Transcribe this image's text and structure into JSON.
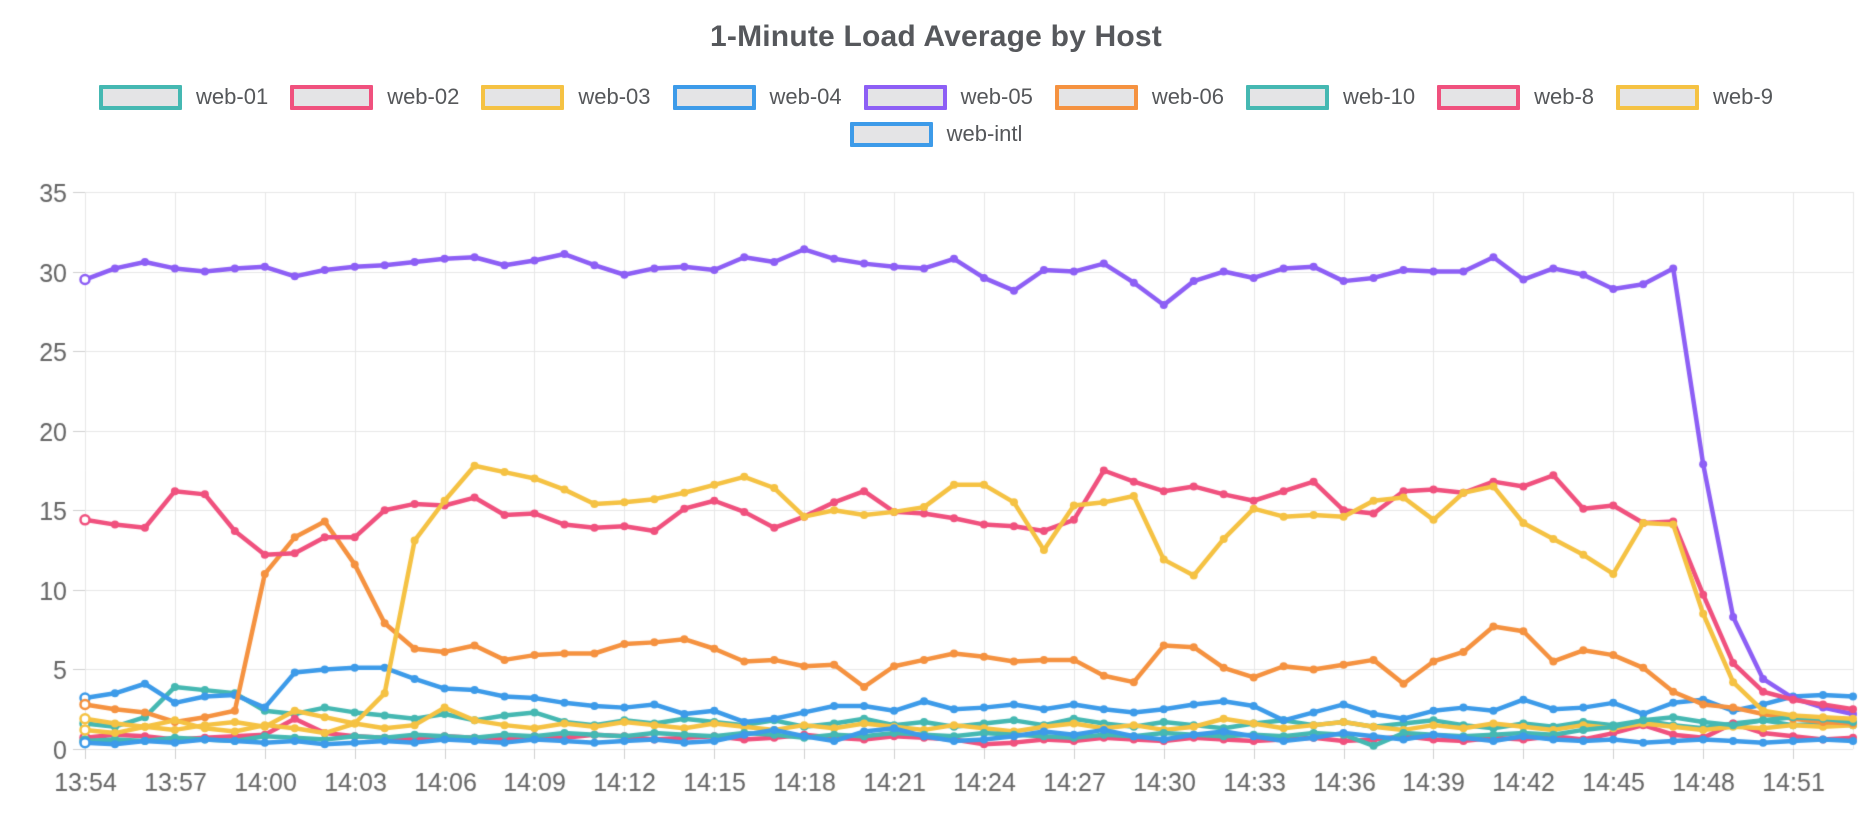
{
  "chart_data": {
    "type": "line",
    "title": "1-Minute Load Average by Host",
    "xlabel": "",
    "ylabel": "",
    "ylim": [
      0,
      35
    ],
    "y_tick_step": 5,
    "x_tick_step": 3,
    "grid": true,
    "legend_position": "top",
    "grid_color": "#e7e7e7",
    "tick_color": "#cfcfcf",
    "axis_text_color": "#666666",
    "title_color": "#56585c",
    "background_color": "#ffffff",
    "x": [
      "13:54",
      "13:55",
      "13:56",
      "13:57",
      "13:58",
      "13:59",
      "14:00",
      "14:01",
      "14:02",
      "14:03",
      "14:04",
      "14:05",
      "14:06",
      "14:07",
      "14:08",
      "14:09",
      "14:10",
      "14:11",
      "14:12",
      "14:13",
      "14:14",
      "14:15",
      "14:16",
      "14:17",
      "14:18",
      "14:19",
      "14:20",
      "14:21",
      "14:22",
      "14:23",
      "14:24",
      "14:25",
      "14:26",
      "14:27",
      "14:28",
      "14:29",
      "14:30",
      "14:31",
      "14:32",
      "14:33",
      "14:34",
      "14:35",
      "14:36",
      "14:37",
      "14:38",
      "14:39",
      "14:40",
      "14:41",
      "14:42",
      "14:43",
      "14:44",
      "14:45",
      "14:46",
      "14:47",
      "14:48",
      "14:49",
      "14:50",
      "14:51",
      "14:52",
      "14:53"
    ],
    "series": [
      {
        "name": "web-01",
        "color": "#45b8b2",
        "values": [
          1.6,
          1.4,
          2.0,
          3.9,
          3.7,
          3.5,
          2.4,
          2.2,
          2.6,
          2.3,
          2.1,
          1.9,
          2.2,
          1.8,
          2.1,
          2.3,
          1.7,
          1.5,
          1.8,
          1.6,
          1.9,
          1.7,
          1.5,
          1.8,
          1.4,
          1.6,
          1.9,
          1.5,
          1.7,
          1.4,
          1.6,
          1.8,
          1.5,
          1.9,
          1.6,
          1.4,
          1.7,
          1.5,
          1.3,
          1.6,
          1.8,
          1.5,
          1.7,
          1.4,
          1.6,
          1.8,
          1.5,
          1.3,
          1.6,
          1.4,
          1.7,
          1.5,
          1.8,
          1.5,
          1.3,
          1.6,
          1.8,
          1.5,
          1.6,
          1.5
        ]
      },
      {
        "name": "web-02",
        "color": "#f0517e",
        "values": [
          0.7,
          0.9,
          0.8,
          0.6,
          0.7,
          0.8,
          0.9,
          1.9,
          1.0,
          0.8,
          0.7,
          0.6,
          0.8,
          0.7,
          0.6,
          0.8,
          0.7,
          0.9,
          0.8,
          0.6,
          0.7,
          0.8,
          0.6,
          0.7,
          0.9,
          0.7,
          0.6,
          0.8,
          0.7,
          0.6,
          0.3,
          0.4,
          0.6,
          0.5,
          0.7,
          0.6,
          0.5,
          0.7,
          0.6,
          0.5,
          0.6,
          0.7,
          0.5,
          0.6,
          0.8,
          0.6,
          0.5,
          0.7,
          0.6,
          0.8,
          0.6,
          1.0,
          1.5,
          0.9,
          0.7,
          1.6,
          1.0,
          0.8,
          0.6,
          0.7
        ]
      },
      {
        "name": "web-03",
        "color": "#f5c243",
        "values": [
          1.9,
          1.6,
          1.4,
          1.2,
          1.5,
          1.7,
          1.4,
          2.4,
          2.0,
          1.6,
          1.3,
          1.5,
          2.6,
          1.8,
          1.5,
          1.3,
          1.6,
          1.4,
          1.7,
          1.5,
          1.3,
          1.6,
          1.4,
          1.2,
          1.5,
          1.3,
          1.6,
          1.4,
          1.2,
          1.5,
          1.3,
          1.1,
          1.4,
          1.6,
          1.3,
          1.5,
          1.2,
          1.4,
          1.9,
          1.6,
          1.3,
          1.5,
          1.7,
          1.4,
          1.2,
          1.5,
          1.3,
          1.6,
          1.4,
          1.2,
          1.5,
          1.3,
          1.6,
          1.4,
          1.2,
          1.4,
          1.3,
          1.5,
          1.4,
          1.5
        ]
      },
      {
        "name": "web-04",
        "color": "#3d9be9",
        "values": [
          3.2,
          3.5,
          4.1,
          2.9,
          3.3,
          3.4,
          2.6,
          4.8,
          5.0,
          5.1,
          5.1,
          4.4,
          3.8,
          3.7,
          3.3,
          3.2,
          2.9,
          2.7,
          2.6,
          2.8,
          2.2,
          2.4,
          1.7,
          1.9,
          2.3,
          2.7,
          2.7,
          2.4,
          3.0,
          2.5,
          2.6,
          2.8,
          2.5,
          2.8,
          2.5,
          2.3,
          2.5,
          2.8,
          3.0,
          2.7,
          1.8,
          2.3,
          2.8,
          2.2,
          1.9,
          2.4,
          2.6,
          2.4,
          3.1,
          2.5,
          2.6,
          2.9,
          2.2,
          2.9,
          3.1,
          2.4,
          2.8,
          3.3,
          3.4,
          3.3
        ]
      },
      {
        "name": "web-05",
        "color": "#8d5ff5",
        "values": [
          29.5,
          30.2,
          30.6,
          30.2,
          30.0,
          30.2,
          30.3,
          29.7,
          30.1,
          30.3,
          30.4,
          30.6,
          30.8,
          30.9,
          30.4,
          30.7,
          31.1,
          30.4,
          29.8,
          30.2,
          30.3,
          30.1,
          30.9,
          30.6,
          31.4,
          30.8,
          30.5,
          30.3,
          30.2,
          30.8,
          29.6,
          28.8,
          30.1,
          30.0,
          30.5,
          29.3,
          27.9,
          29.4,
          30.0,
          29.6,
          30.2,
          30.3,
          29.4,
          29.6,
          30.1,
          30.0,
          30.0,
          30.9,
          29.5,
          30.2,
          29.8,
          28.9,
          29.2,
          30.2,
          17.9,
          8.3,
          4.4,
          3.2,
          2.6,
          2.2
        ]
      },
      {
        "name": "web-06",
        "color": "#f59240",
        "values": [
          2.8,
          2.5,
          2.3,
          1.7,
          2.0,
          2.4,
          11.0,
          13.3,
          14.3,
          11.6,
          7.9,
          6.3,
          6.1,
          6.5,
          5.6,
          5.9,
          6.0,
          6.0,
          6.6,
          6.7,
          6.9,
          6.3,
          5.5,
          5.6,
          5.2,
          5.3,
          3.9,
          5.2,
          5.6,
          6.0,
          5.8,
          5.5,
          5.6,
          5.6,
          4.6,
          4.2,
          6.5,
          6.4,
          5.1,
          4.5,
          5.2,
          5.0,
          5.3,
          5.6,
          4.1,
          5.5,
          6.1,
          7.7,
          7.4,
          5.5,
          6.2,
          5.9,
          5.1,
          3.6,
          2.8,
          2.6,
          2.2,
          1.9,
          1.7,
          1.6
        ]
      },
      {
        "name": "web-10",
        "color": "#45b8b2",
        "values": [
          0.5,
          0.6,
          0.5,
          0.7,
          0.6,
          0.5,
          0.8,
          0.7,
          0.6,
          0.8,
          0.7,
          0.9,
          0.8,
          0.7,
          0.9,
          0.8,
          1.0,
          0.9,
          0.8,
          1.0,
          0.9,
          0.8,
          1.0,
          0.9,
          0.7,
          0.9,
          0.8,
          1.0,
          0.9,
          0.8,
          1.0,
          0.9,
          0.8,
          0.7,
          0.9,
          0.8,
          1.0,
          0.9,
          0.8,
          0.9,
          0.8,
          1.0,
          0.9,
          0.2,
          1.0,
          0.9,
          0.8,
          0.9,
          1.0,
          0.9,
          1.2,
          1.4,
          1.8,
          2.0,
          1.7,
          1.5,
          1.8,
          2.0,
          1.9,
          1.7
        ]
      },
      {
        "name": "web-8",
        "color": "#f0517e",
        "values": [
          14.4,
          14.1,
          13.9,
          16.2,
          16.0,
          13.7,
          12.2,
          12.3,
          13.3,
          13.3,
          15.0,
          15.4,
          15.3,
          15.8,
          14.7,
          14.8,
          14.1,
          13.9,
          14.0,
          13.7,
          15.1,
          15.6,
          14.9,
          13.9,
          14.6,
          15.5,
          16.2,
          14.9,
          14.8,
          14.5,
          14.1,
          14.0,
          13.7,
          14.4,
          17.5,
          16.8,
          16.2,
          16.5,
          16.0,
          15.6,
          16.2,
          16.8,
          15.0,
          14.8,
          16.2,
          16.3,
          16.1,
          16.8,
          16.5,
          17.2,
          15.1,
          15.3,
          14.2,
          14.3,
          9.7,
          5.4,
          3.6,
          3.1,
          2.8,
          2.5
        ]
      },
      {
        "name": "web-9",
        "color": "#f5c243",
        "values": [
          1.2,
          1.0,
          1.4,
          1.8,
          1.3,
          1.1,
          1.5,
          1.3,
          1.0,
          1.6,
          3.5,
          13.1,
          15.6,
          17.8,
          17.4,
          17.0,
          16.3,
          15.4,
          15.5,
          15.7,
          16.1,
          16.6,
          17.1,
          16.4,
          14.6,
          15.0,
          14.7,
          14.9,
          15.2,
          16.6,
          16.6,
          15.5,
          12.5,
          15.3,
          15.5,
          15.9,
          11.9,
          10.9,
          13.2,
          15.1,
          14.6,
          14.7,
          14.6,
          15.6,
          15.8,
          14.4,
          16.1,
          16.5,
          14.2,
          13.2,
          12.2,
          11.0,
          14.2,
          14.1,
          8.5,
          4.2,
          2.4,
          2.1,
          2.0,
          1.9
        ]
      },
      {
        "name": "web-intl",
        "color": "#3d9be9",
        "values": [
          0.4,
          0.3,
          0.5,
          0.4,
          0.6,
          0.5,
          0.4,
          0.5,
          0.3,
          0.4,
          0.5,
          0.4,
          0.6,
          0.5,
          0.4,
          0.6,
          0.5,
          0.4,
          0.5,
          0.6,
          0.4,
          0.5,
          0.9,
          1.2,
          0.8,
          0.5,
          1.1,
          1.3,
          0.8,
          0.5,
          0.6,
          0.8,
          1.1,
          0.9,
          1.2,
          0.8,
          0.6,
          0.9,
          1.1,
          0.8,
          0.5,
          0.7,
          1.0,
          0.8,
          0.6,
          0.9,
          0.7,
          0.5,
          0.8,
          0.6,
          0.5,
          0.6,
          0.4,
          0.5,
          0.6,
          0.5,
          0.4,
          0.5,
          0.6,
          0.5
        ]
      }
    ],
    "y_ticks": [
      "0",
      "5",
      "10",
      "15",
      "20",
      "25",
      "30",
      "35"
    ]
  }
}
